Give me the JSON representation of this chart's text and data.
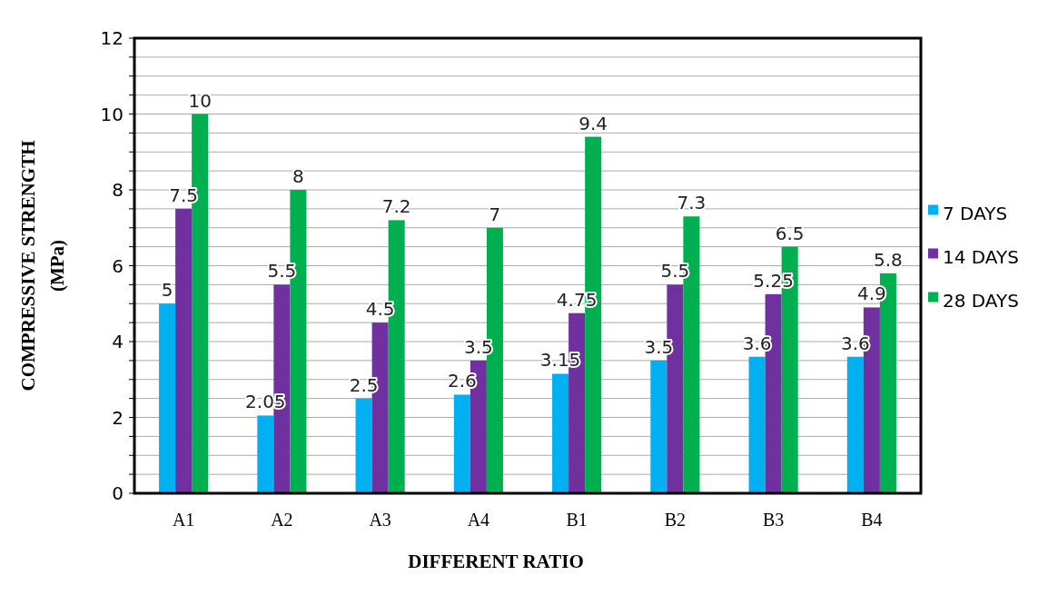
{
  "chart_data": {
    "type": "bar",
    "xlabel": "DIFFERENT RATIO",
    "ylabel": "COMPRESSIVE STRENGTH\n(MPa)",
    "categories": [
      "A1",
      "A2",
      "A3",
      "A4",
      "B1",
      "B2",
      "B3",
      "B4"
    ],
    "series": [
      {
        "name": "7 DAYS",
        "color": "#00b0f0",
        "values": [
          5,
          2.05,
          2.5,
          2.6,
          3.15,
          3.5,
          3.6,
          3.6
        ]
      },
      {
        "name": "14 DAYS",
        "color": "#7030a0",
        "values": [
          7.5,
          5.5,
          4.5,
          3.5,
          4.75,
          5.5,
          5.25,
          4.9
        ]
      },
      {
        "name": "28 DAYS",
        "color": "#00b050",
        "values": [
          10,
          8,
          7.2,
          7,
          9.4,
          7.3,
          6.5,
          5.8
        ]
      }
    ],
    "ylim": [
      0,
      12
    ],
    "yticks": [
      0,
      {
        "value": 0.5,
        "label": null
      },
      {
        "value": 1,
        "label": null
      },
      {
        "value": 1.5,
        "label": null
      },
      2,
      {
        "value": 2.5,
        "label": null
      },
      {
        "value": 3,
        "label": null
      },
      {
        "value": 3.5,
        "label": null
      },
      4,
      {
        "value": 4.5,
        "label": null
      },
      {
        "value": 5,
        "label": null
      },
      {
        "value": 5.5,
        "label": null
      },
      6,
      {
        "value": 6.5,
        "label": null
      },
      {
        "value": 7,
        "label": null
      },
      {
        "value": 7.5,
        "label": null
      },
      8,
      {
        "value": 8.5,
        "label": null
      },
      {
        "value": 9,
        "label": null
      },
      {
        "value": 9.5,
        "label": null
      },
      10,
      {
        "value": 10.5,
        "label": null
      },
      {
        "value": 11,
        "label": null
      },
      {
        "value": 11.5,
        "label": null
      },
      12
    ],
    "grid": "y",
    "legend": "right",
    "data_labels": true
  }
}
